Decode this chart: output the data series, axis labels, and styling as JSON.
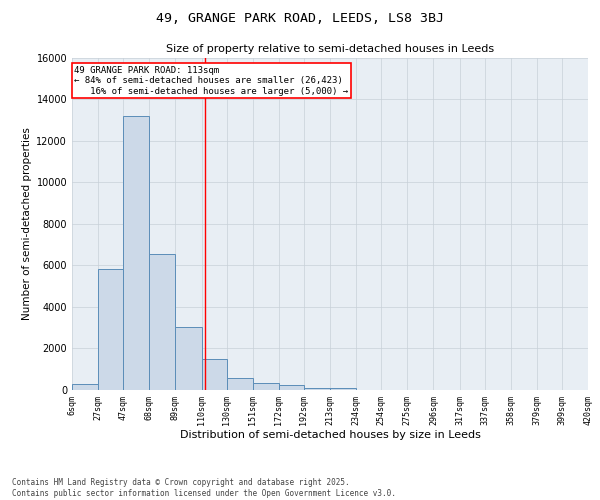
{
  "title_line1": "49, GRANGE PARK ROAD, LEEDS, LS8 3BJ",
  "title_line2": "Size of property relative to semi-detached houses in Leeds",
  "xlabel": "Distribution of semi-detached houses by size in Leeds",
  "ylabel": "Number of semi-detached properties",
  "bin_edges": [
    6,
    27,
    47,
    68,
    89,
    110,
    130,
    151,
    172,
    192,
    213,
    234,
    254,
    275,
    296,
    317,
    337,
    358,
    379,
    399,
    420
  ],
  "bar_heights": [
    300,
    5800,
    13200,
    6550,
    3050,
    1500,
    600,
    350,
    250,
    120,
    100,
    0,
    0,
    0,
    0,
    0,
    0,
    0,
    0,
    0
  ],
  "bar_facecolor": "#ccd9e8",
  "bar_edgecolor": "#5b8db8",
  "grid_color": "#c8d0d8",
  "background_color": "#e8eef4",
  "vline_x": 113,
  "vline_color": "red",
  "annotation_text": "49 GRANGE PARK ROAD: 113sqm\n← 84% of semi-detached houses are smaller (26,423)\n   16% of semi-detached houses are larger (5,000) →",
  "annotation_box_color": "white",
  "annotation_box_edgecolor": "red",
  "ylim": [
    0,
    16000
  ],
  "yticks": [
    0,
    2000,
    4000,
    6000,
    8000,
    10000,
    12000,
    14000,
    16000
  ],
  "footer_line1": "Contains HM Land Registry data © Crown copyright and database right 2025.",
  "footer_line2": "Contains public sector information licensed under the Open Government Licence v3.0.",
  "tick_labels": [
    "6sqm",
    "27sqm",
    "47sqm",
    "68sqm",
    "89sqm",
    "110sqm",
    "130sqm",
    "151sqm",
    "172sqm",
    "192sqm",
    "213sqm",
    "234sqm",
    "254sqm",
    "275sqm",
    "296sqm",
    "317sqm",
    "337sqm",
    "358sqm",
    "379sqm",
    "399sqm",
    "420sqm"
  ]
}
